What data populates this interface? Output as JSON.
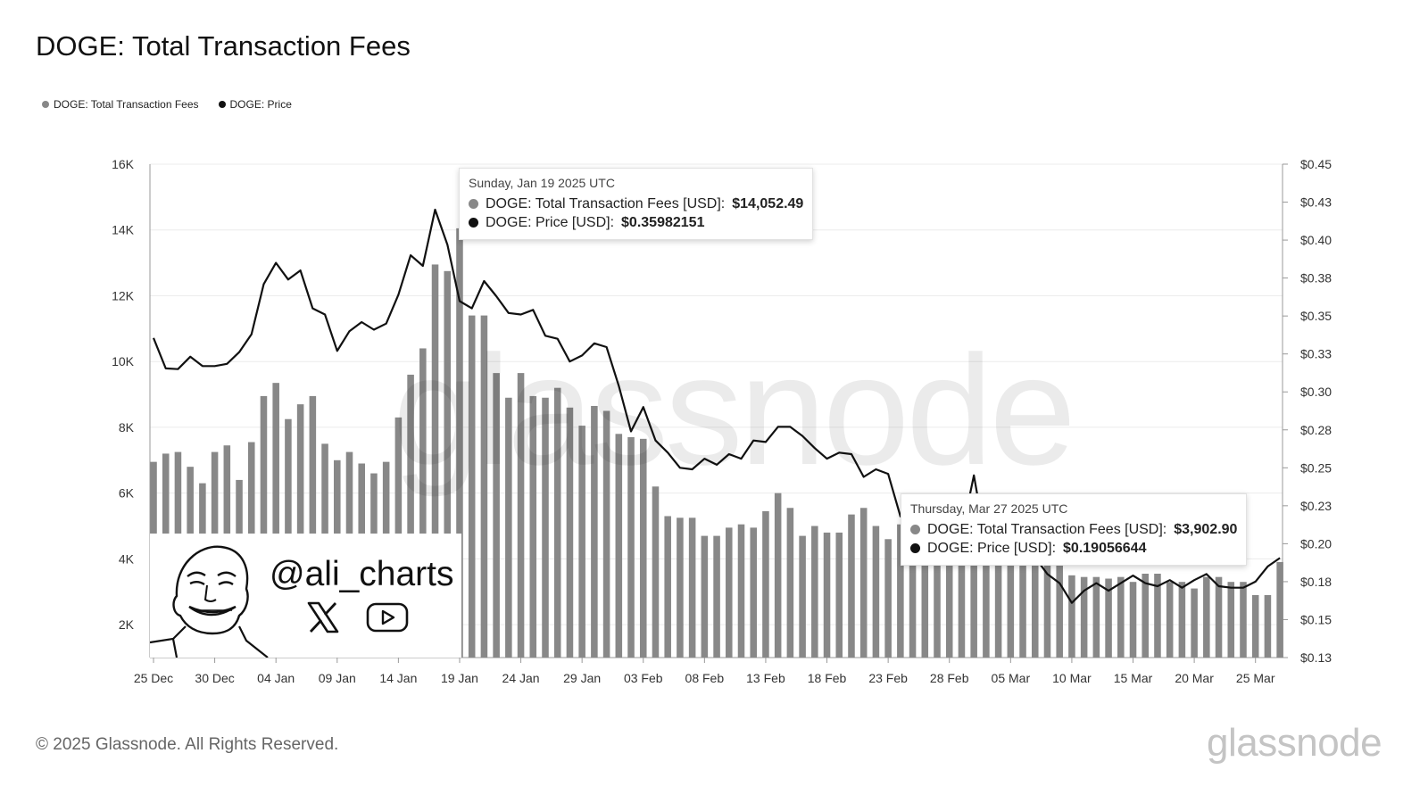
{
  "title": "DOGE: Total Transaction Fees",
  "legend": {
    "items": [
      {
        "label": "DOGE: Total Transaction Fees",
        "color": "#888888"
      },
      {
        "label": "DOGE: Price",
        "color": "#111111"
      }
    ]
  },
  "tooltips": [
    {
      "date": "Sunday, Jan 19 2025 UTC",
      "fees_label": "DOGE: Total Transaction Fees [USD]: ",
      "fees_value": "$14,052.49",
      "price_label": "DOGE: Price [USD]: ",
      "price_value": "$0.35982151"
    },
    {
      "date": "Thursday, Mar 27 2025 UTC",
      "fees_label": "DOGE: Total Transaction Fees [USD]: ",
      "fees_value": "$3,902.90",
      "price_label": "DOGE: Price [USD]: ",
      "price_value": "$0.19056644"
    }
  ],
  "overlay": {
    "handle": "@ali_charts",
    "icons": [
      "x-logo-icon",
      "youtube-icon"
    ],
    "watermark": "glassnode"
  },
  "footer": {
    "copyright": "© 2025 Glassnode. All Rights Reserved.",
    "logo": "glassnode"
  },
  "colors": {
    "bars": "#888888",
    "line": "#111111",
    "grid": "#ececec",
    "axis_text": "#333333"
  },
  "chart_data": {
    "type": "bar",
    "title": "DOGE: Total Transaction Fees",
    "x_tick_labels": [
      "25 Dec",
      "30 Dec",
      "04 Jan",
      "09 Jan",
      "14 Jan",
      "19 Jan",
      "24 Jan",
      "29 Jan",
      "03 Feb",
      "08 Feb",
      "13 Feb",
      "18 Feb",
      "23 Feb",
      "28 Feb",
      "05 Mar",
      "10 Mar",
      "15 Mar",
      "20 Mar",
      "25 Mar"
    ],
    "y_left_ticks": [
      "2K",
      "4K",
      "6K",
      "8K",
      "10K",
      "12K",
      "14K",
      "16K"
    ],
    "y_left_tick_values": [
      2000,
      4000,
      6000,
      8000,
      10000,
      12000,
      14000,
      16000
    ],
    "y_right_ticks": [
      "$0.13",
      "$0.15",
      "$0.18",
      "$0.20",
      "$0.23",
      "$0.25",
      "$0.28",
      "$0.30",
      "$0.33",
      "$0.35",
      "$0.38",
      "$0.40",
      "$0.43",
      "$0.45"
    ],
    "y_right_tick_values": [
      0.125,
      0.15,
      0.175,
      0.2,
      0.225,
      0.25,
      0.275,
      0.3,
      0.325,
      0.35,
      0.375,
      0.4,
      0.425,
      0.45
    ],
    "ylim_left": [
      1000,
      16000
    ],
    "ylim_right": [
      0.125,
      0.45
    ],
    "grid": true,
    "legend_position": "top-left",
    "x": [
      "2024-12-25",
      "2024-12-26",
      "2024-12-27",
      "2024-12-28",
      "2024-12-29",
      "2024-12-30",
      "2024-12-31",
      "2025-01-01",
      "2025-01-02",
      "2025-01-03",
      "2025-01-04",
      "2025-01-05",
      "2025-01-06",
      "2025-01-07",
      "2025-01-08",
      "2025-01-09",
      "2025-01-10",
      "2025-01-11",
      "2025-01-12",
      "2025-01-13",
      "2025-01-14",
      "2025-01-15",
      "2025-01-16",
      "2025-01-17",
      "2025-01-18",
      "2025-01-19",
      "2025-01-20",
      "2025-01-21",
      "2025-01-22",
      "2025-01-23",
      "2025-01-24",
      "2025-01-25",
      "2025-01-26",
      "2025-01-27",
      "2025-01-28",
      "2025-01-29",
      "2025-01-30",
      "2025-01-31",
      "2025-02-01",
      "2025-02-02",
      "2025-02-03",
      "2025-02-04",
      "2025-02-05",
      "2025-02-06",
      "2025-02-07",
      "2025-02-08",
      "2025-02-09",
      "2025-02-10",
      "2025-02-11",
      "2025-02-12",
      "2025-02-13",
      "2025-02-14",
      "2025-02-15",
      "2025-02-16",
      "2025-02-17",
      "2025-02-18",
      "2025-02-19",
      "2025-02-20",
      "2025-02-21",
      "2025-02-22",
      "2025-02-23",
      "2025-02-24",
      "2025-02-25",
      "2025-02-26",
      "2025-02-27",
      "2025-02-28",
      "2025-03-01",
      "2025-03-02",
      "2025-03-03",
      "2025-03-04",
      "2025-03-05",
      "2025-03-06",
      "2025-03-07",
      "2025-03-08",
      "2025-03-09",
      "2025-03-10",
      "2025-03-11",
      "2025-03-12",
      "2025-03-13",
      "2025-03-14",
      "2025-03-15",
      "2025-03-16",
      "2025-03-17",
      "2025-03-18",
      "2025-03-19",
      "2025-03-20",
      "2025-03-21",
      "2025-03-22",
      "2025-03-23",
      "2025-03-24",
      "2025-03-25",
      "2025-03-26",
      "2025-03-27"
    ],
    "series": [
      {
        "name": "DOGE: Total Transaction Fees",
        "type": "bar",
        "axis": "left",
        "values": [
          6950,
          7200,
          7250,
          6800,
          6300,
          7250,
          7450,
          6400,
          7550,
          8950,
          9350,
          8250,
          8700,
          8950,
          7500,
          7000,
          7250,
          6900,
          6600,
          6950,
          8300,
          9600,
          10400,
          12950,
          12750,
          14050,
          11400,
          11400,
          9650,
          8900,
          9650,
          8950,
          8900,
          9200,
          8600,
          8050,
          8650,
          8500,
          7800,
          7700,
          7650,
          6200,
          5300,
          5250,
          5250,
          4700,
          4700,
          4950,
          5050,
          4950,
          5450,
          6000,
          5550,
          4700,
          5000,
          4800,
          4800,
          5350,
          5550,
          5000,
          4600,
          5050,
          4600,
          4250,
          4250,
          4350,
          4600,
          4150,
          4050,
          4050,
          4100,
          4150,
          4100,
          3800,
          3850,
          3500,
          3450,
          3450,
          3400,
          3450,
          3300,
          3550,
          3550,
          3300,
          3300,
          3100,
          3450,
          3450,
          3300,
          3300,
          2900,
          2900,
          3902.9
        ]
      },
      {
        "name": "DOGE: Price",
        "type": "line",
        "axis": "right",
        "values": [
          0.3355,
          0.3155,
          0.315,
          0.3232,
          0.317,
          0.317,
          0.3185,
          0.3262,
          0.338,
          0.371,
          0.385,
          0.374,
          0.38,
          0.355,
          0.351,
          0.327,
          0.34,
          0.346,
          0.341,
          0.345,
          0.364,
          0.39,
          0.383,
          0.42,
          0.397,
          0.3598,
          0.355,
          0.373,
          0.363,
          0.352,
          0.351,
          0.354,
          0.337,
          0.335,
          0.32,
          0.324,
          0.332,
          0.3295,
          0.304,
          0.274,
          0.29,
          0.268,
          0.26,
          0.25,
          0.249,
          0.256,
          0.252,
          0.259,
          0.256,
          0.268,
          0.267,
          0.277,
          0.277,
          0.271,
          0.263,
          0.256,
          0.26,
          0.259,
          0.244,
          0.249,
          0.246,
          0.218,
          0.223,
          0.22,
          0.206,
          0.208,
          0.206,
          0.245,
          0.199,
          0.196,
          0.193,
          0.195,
          0.191,
          0.18,
          0.174,
          0.161,
          0.169,
          0.174,
          0.169,
          0.174,
          0.179,
          0.174,
          0.172,
          0.176,
          0.171,
          0.176,
          0.18,
          0.172,
          0.171,
          0.171,
          0.175,
          0.185,
          0.1906
        ]
      }
    ]
  }
}
